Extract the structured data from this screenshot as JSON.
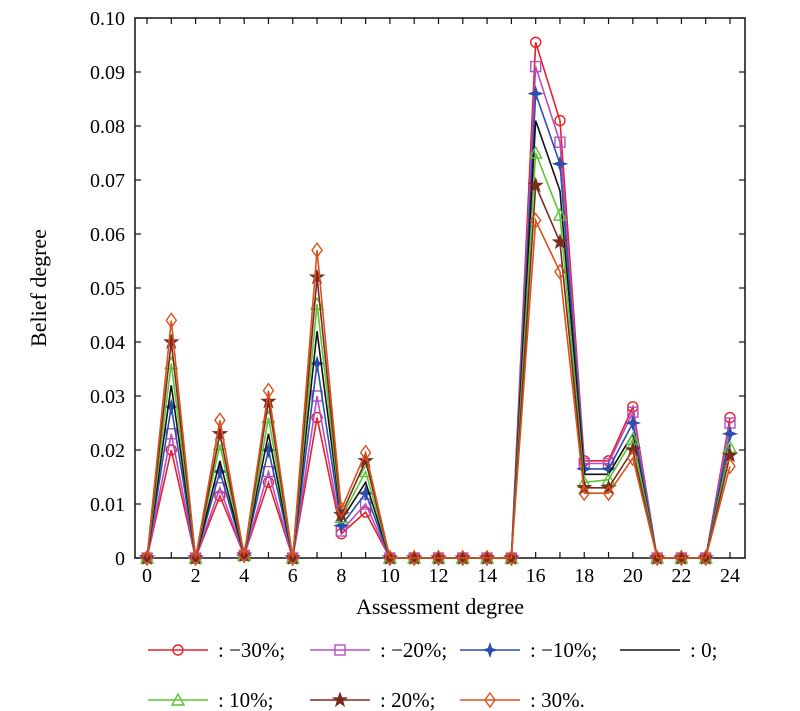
{
  "chart_data": {
    "type": "line",
    "xlabel": "Assessment degree",
    "ylabel": "Belief degree",
    "xlim": [
      0,
      24
    ],
    "ylim": [
      0,
      0.1
    ],
    "xticks": [
      0,
      2,
      4,
      6,
      8,
      10,
      12,
      14,
      16,
      18,
      20,
      22,
      24
    ],
    "yticks": [
      "0",
      "0.01",
      "0.02",
      "0.03",
      "0.04",
      "0.05",
      "0.06",
      "0.07",
      "0.08",
      "0.09",
      "0.10"
    ],
    "x": [
      0,
      1,
      2,
      3,
      4,
      5,
      6,
      7,
      8,
      9,
      10,
      11,
      12,
      13,
      14,
      15,
      16,
      17,
      18,
      19,
      20,
      21,
      22,
      23,
      24
    ],
    "legend_placement": "bottom",
    "series": [
      {
        "name": ": −30%;",
        "color": "#e8202a",
        "marker": "circle",
        "values": [
          0,
          0.02,
          0,
          0.0115,
          0.0005,
          0.014,
          0,
          0.026,
          0.0045,
          0.0085,
          0,
          0,
          0,
          0,
          0,
          0,
          0.0955,
          0.081,
          0.018,
          0.018,
          0.028,
          0,
          0,
          0,
          0.026
        ]
      },
      {
        "name": ": −20%;",
        "color": "#b54fc4",
        "marker": "square",
        "values": [
          0,
          0.023,
          0,
          0.013,
          0.0005,
          0.016,
          0,
          0.03,
          0.005,
          0.01,
          0,
          0,
          0,
          0,
          0,
          0,
          0.091,
          0.077,
          0.0175,
          0.0175,
          0.027,
          0,
          0,
          0,
          0.025
        ]
      },
      {
        "name": ": −10%;",
        "color": "#2a4fb0",
        "marker": "star4",
        "values": [
          0,
          0.028,
          0,
          0.016,
          0.0005,
          0.02,
          0,
          0.036,
          0.006,
          0.012,
          0,
          0,
          0,
          0,
          0,
          0,
          0.086,
          0.073,
          0.0165,
          0.0165,
          0.025,
          0,
          0,
          0,
          0.023
        ]
      },
      {
        "name": ": 0;",
        "color": "#111111",
        "marker": "none",
        "values": [
          0,
          0.032,
          0,
          0.018,
          0.0005,
          0.023,
          0,
          0.042,
          0.007,
          0.014,
          0,
          0,
          0,
          0,
          0,
          0,
          0.081,
          0.068,
          0.0155,
          0.0155,
          0.023,
          0,
          0,
          0,
          0.021
        ]
      },
      {
        "name": ": 10%;",
        "color": "#5cc435",
        "marker": "triangle",
        "values": [
          0,
          0.036,
          0,
          0.021,
          0.0005,
          0.026,
          0,
          0.047,
          0.0075,
          0.016,
          0,
          0,
          0,
          0,
          0,
          0,
          0.075,
          0.0635,
          0.014,
          0.0145,
          0.022,
          0,
          0,
          0,
          0.0205
        ]
      },
      {
        "name": ": 20%;",
        "color": "#7a2a1e",
        "marker": "star",
        "values": [
          0,
          0.04,
          0,
          0.023,
          0.0005,
          0.029,
          0,
          0.052,
          0.008,
          0.018,
          0,
          0,
          0,
          0,
          0,
          0,
          0.069,
          0.0585,
          0.013,
          0.013,
          0.02,
          0,
          0,
          0,
          0.019
        ]
      },
      {
        "name": ": 30%.",
        "color": "#d9531e",
        "marker": "diamond",
        "values": [
          0,
          0.044,
          0,
          0.0255,
          0.0005,
          0.031,
          0,
          0.057,
          0.009,
          0.0195,
          0,
          0,
          0,
          0,
          0,
          0,
          0.0625,
          0.053,
          0.012,
          0.012,
          0.0185,
          0,
          0,
          0,
          0.017
        ]
      }
    ]
  }
}
